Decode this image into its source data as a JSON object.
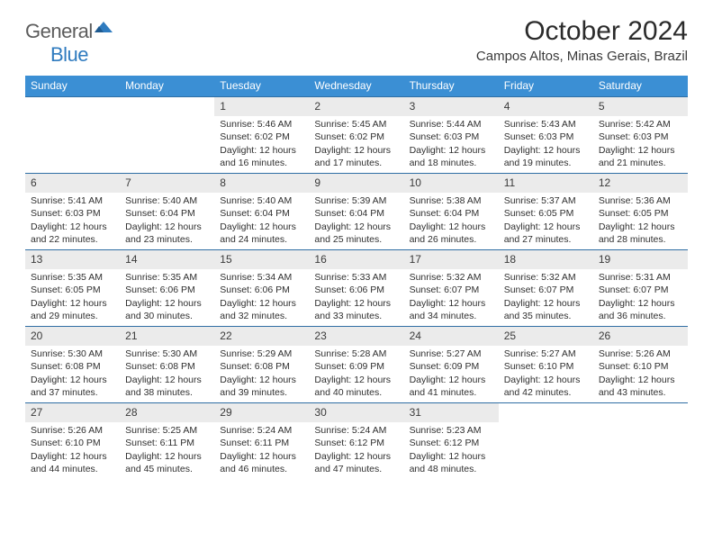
{
  "brand": {
    "gray": "General",
    "blue": "Blue"
  },
  "title": "October 2024",
  "location": "Campos Altos, Minas Gerais, Brazil",
  "colors": {
    "header_bg": "#3b8fd4",
    "header_text": "#ffffff",
    "divider": "#2f6ea4",
    "daynum_bg": "#ebebeb",
    "body_text": "#2f2f2f",
    "logo_gray": "#5c5c5c",
    "logo_blue": "#2f7bbf"
  },
  "typography": {
    "title_size_pt": 22,
    "location_size_pt": 11,
    "dow_size_pt": 9,
    "cell_size_pt": 8
  },
  "days_of_week": [
    "Sunday",
    "Monday",
    "Tuesday",
    "Wednesday",
    "Thursday",
    "Friday",
    "Saturday"
  ],
  "weeks": [
    [
      null,
      null,
      {
        "n": "1",
        "sr": "5:46 AM",
        "ss": "6:02 PM",
        "dl": "12 hours and 16 minutes."
      },
      {
        "n": "2",
        "sr": "5:45 AM",
        "ss": "6:02 PM",
        "dl": "12 hours and 17 minutes."
      },
      {
        "n": "3",
        "sr": "5:44 AM",
        "ss": "6:03 PM",
        "dl": "12 hours and 18 minutes."
      },
      {
        "n": "4",
        "sr": "5:43 AM",
        "ss": "6:03 PM",
        "dl": "12 hours and 19 minutes."
      },
      {
        "n": "5",
        "sr": "5:42 AM",
        "ss": "6:03 PM",
        "dl": "12 hours and 21 minutes."
      }
    ],
    [
      {
        "n": "6",
        "sr": "5:41 AM",
        "ss": "6:03 PM",
        "dl": "12 hours and 22 minutes."
      },
      {
        "n": "7",
        "sr": "5:40 AM",
        "ss": "6:04 PM",
        "dl": "12 hours and 23 minutes."
      },
      {
        "n": "8",
        "sr": "5:40 AM",
        "ss": "6:04 PM",
        "dl": "12 hours and 24 minutes."
      },
      {
        "n": "9",
        "sr": "5:39 AM",
        "ss": "6:04 PM",
        "dl": "12 hours and 25 minutes."
      },
      {
        "n": "10",
        "sr": "5:38 AM",
        "ss": "6:04 PM",
        "dl": "12 hours and 26 minutes."
      },
      {
        "n": "11",
        "sr": "5:37 AM",
        "ss": "6:05 PM",
        "dl": "12 hours and 27 minutes."
      },
      {
        "n": "12",
        "sr": "5:36 AM",
        "ss": "6:05 PM",
        "dl": "12 hours and 28 minutes."
      }
    ],
    [
      {
        "n": "13",
        "sr": "5:35 AM",
        "ss": "6:05 PM",
        "dl": "12 hours and 29 minutes."
      },
      {
        "n": "14",
        "sr": "5:35 AM",
        "ss": "6:06 PM",
        "dl": "12 hours and 30 minutes."
      },
      {
        "n": "15",
        "sr": "5:34 AM",
        "ss": "6:06 PM",
        "dl": "12 hours and 32 minutes."
      },
      {
        "n": "16",
        "sr": "5:33 AM",
        "ss": "6:06 PM",
        "dl": "12 hours and 33 minutes."
      },
      {
        "n": "17",
        "sr": "5:32 AM",
        "ss": "6:07 PM",
        "dl": "12 hours and 34 minutes."
      },
      {
        "n": "18",
        "sr": "5:32 AM",
        "ss": "6:07 PM",
        "dl": "12 hours and 35 minutes."
      },
      {
        "n": "19",
        "sr": "5:31 AM",
        "ss": "6:07 PM",
        "dl": "12 hours and 36 minutes."
      }
    ],
    [
      {
        "n": "20",
        "sr": "5:30 AM",
        "ss": "6:08 PM",
        "dl": "12 hours and 37 minutes."
      },
      {
        "n": "21",
        "sr": "5:30 AM",
        "ss": "6:08 PM",
        "dl": "12 hours and 38 minutes."
      },
      {
        "n": "22",
        "sr": "5:29 AM",
        "ss": "6:08 PM",
        "dl": "12 hours and 39 minutes."
      },
      {
        "n": "23",
        "sr": "5:28 AM",
        "ss": "6:09 PM",
        "dl": "12 hours and 40 minutes."
      },
      {
        "n": "24",
        "sr": "5:27 AM",
        "ss": "6:09 PM",
        "dl": "12 hours and 41 minutes."
      },
      {
        "n": "25",
        "sr": "5:27 AM",
        "ss": "6:10 PM",
        "dl": "12 hours and 42 minutes."
      },
      {
        "n": "26",
        "sr": "5:26 AM",
        "ss": "6:10 PM",
        "dl": "12 hours and 43 minutes."
      }
    ],
    [
      {
        "n": "27",
        "sr": "5:26 AM",
        "ss": "6:10 PM",
        "dl": "12 hours and 44 minutes."
      },
      {
        "n": "28",
        "sr": "5:25 AM",
        "ss": "6:11 PM",
        "dl": "12 hours and 45 minutes."
      },
      {
        "n": "29",
        "sr": "5:24 AM",
        "ss": "6:11 PM",
        "dl": "12 hours and 46 minutes."
      },
      {
        "n": "30",
        "sr": "5:24 AM",
        "ss": "6:12 PM",
        "dl": "12 hours and 47 minutes."
      },
      {
        "n": "31",
        "sr": "5:23 AM",
        "ss": "6:12 PM",
        "dl": "12 hours and 48 minutes."
      },
      null,
      null
    ]
  ],
  "labels": {
    "sunrise": "Sunrise:",
    "sunset": "Sunset:",
    "daylight": "Daylight:"
  }
}
